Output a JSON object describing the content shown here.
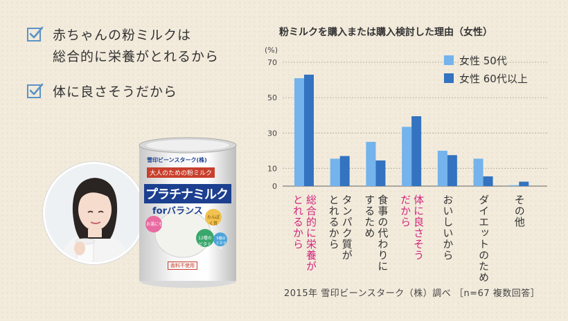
{
  "reasons": [
    {
      "text": "赤ちゃんの粉ミルクは\n総合的に栄養がとれるから"
    },
    {
      "text": "体に良さそうだから"
    }
  ],
  "product": {
    "brand": "雪印ビーンスターク(株)",
    "tagline": "大人のための粉ミルク",
    "name": "プラチナミルク",
    "sub": "forバランス",
    "badge_left": "お湯にも",
    "badge_vitamin": "12種の ビタミン",
    "badge_protein": "たんぱく質",
    "badge_mineral": "5種のミネラル",
    "note": "香料不使用"
  },
  "colors": {
    "series1": "#74b3ec",
    "series2": "#3373bf",
    "highlight": "#d2257c",
    "check": "#5a93c6"
  },
  "icons": {
    "check": "checkbox-check-icon"
  },
  "chart_data": {
    "type": "bar",
    "title": "粉ミルクを購入または購入検討した理由（女性）",
    "ylabel": "(%)",
    "ylim": [
      0,
      70
    ],
    "yticks": [
      0,
      10,
      30,
      50,
      70
    ],
    "grid": true,
    "legend": "top-right",
    "categories": [
      "総合的に栄養が\nとれるから",
      "タンパク質が\nとれるから",
      "食事の代わりに\nするため",
      "体に良さそう\nだから",
      "おいしいから",
      "ダイエットのため",
      "その他"
    ],
    "highlight_categories": [
      0,
      3
    ],
    "series": [
      {
        "name": "女性 50代",
        "values": [
          61,
          15.5,
          25,
          33.5,
          20,
          15.5,
          0.5
        ]
      },
      {
        "name": "女性 60代以上",
        "values": [
          63,
          17,
          14.5,
          39.5,
          17.5,
          5.5,
          2.5
        ]
      }
    ]
  },
  "source": "2015年 雪印ビーンスターク（株）調べ ［n=67 複数回答］"
}
